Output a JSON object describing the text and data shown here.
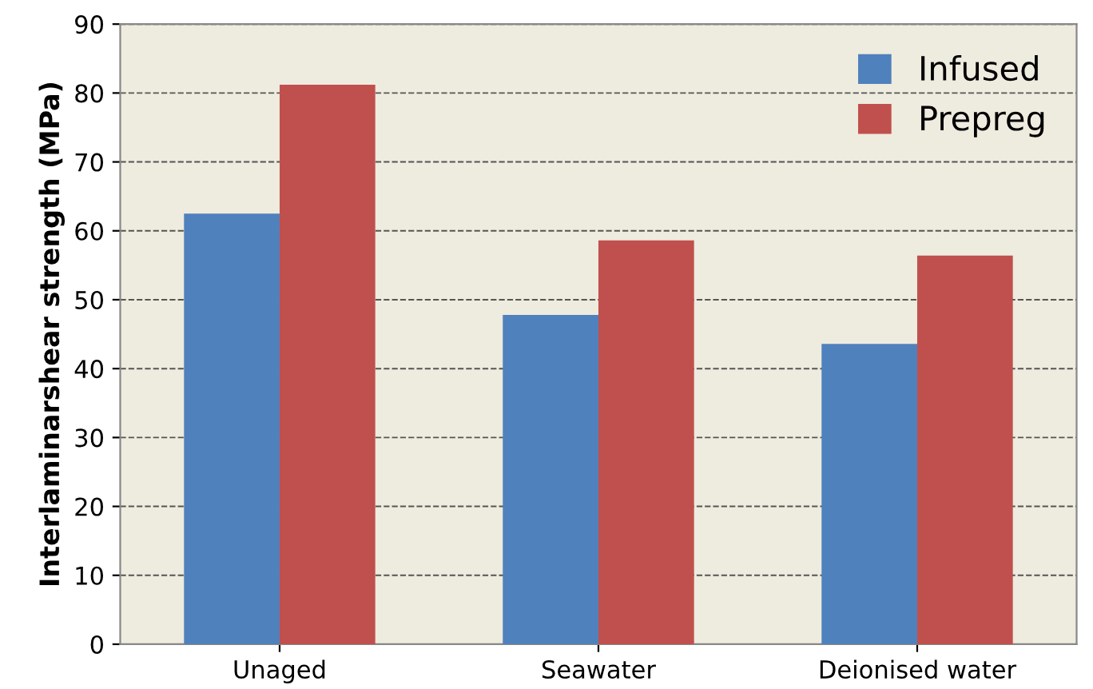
{
  "chart_data": {
    "type": "bar",
    "ylabel": "Interlaminarshear strength (MPa)",
    "categories": [
      "Unaged",
      "Seawater",
      "Deionised water"
    ],
    "series": [
      {
        "name": "Infused",
        "color": "#4f81bd",
        "values": [
          62.5,
          47.8,
          43.6
        ]
      },
      {
        "name": "Prepreg",
        "color": "#c0504d",
        "values": [
          81.2,
          58.6,
          56.4
        ]
      }
    ],
    "ylim": [
      0,
      90
    ],
    "yticks": [
      0,
      10,
      20,
      30,
      40,
      50,
      60,
      70,
      80,
      90
    ],
    "grid": "y",
    "legend": "top right"
  }
}
